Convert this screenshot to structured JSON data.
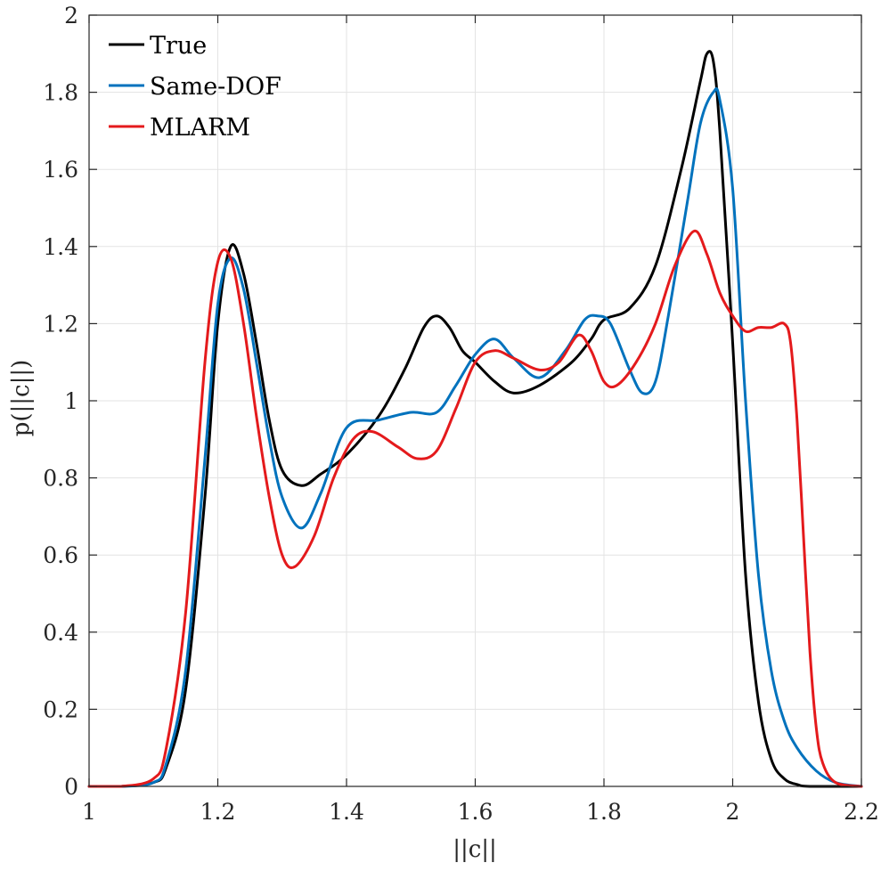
{
  "chart_data": {
    "type": "line",
    "title": "",
    "xlabel": "||c||",
    "ylabel": "p(||c||)",
    "xlim": [
      1,
      2.2
    ],
    "ylim": [
      0,
      2
    ],
    "xticks": [
      1,
      1.2,
      1.4,
      1.6,
      1.8,
      2,
      2.2
    ],
    "yticks": [
      0,
      0.2,
      0.4,
      0.6,
      0.8,
      1,
      1.2,
      1.4,
      1.6,
      1.8,
      2
    ],
    "xtick_labels": [
      "1",
      "1.2",
      "1.4",
      "1.6",
      "1.8",
      "2",
      "2.2"
    ],
    "ytick_labels": [
      "0",
      "0.2",
      "0.4",
      "0.6",
      "0.8",
      "1",
      "1.2",
      "1.4",
      "1.6",
      "1.8",
      "2"
    ],
    "grid": true,
    "legend_position": "top-left",
    "series": [
      {
        "name": "True",
        "color": "#000000",
        "x": [
          1.0,
          1.05,
          1.1,
          1.12,
          1.15,
          1.18,
          1.2,
          1.22,
          1.24,
          1.26,
          1.28,
          1.3,
          1.33,
          1.36,
          1.4,
          1.45,
          1.49,
          1.52,
          1.54,
          1.56,
          1.58,
          1.6,
          1.63,
          1.66,
          1.7,
          1.75,
          1.78,
          1.8,
          1.84,
          1.88,
          1.92,
          1.95,
          1.96,
          1.97,
          1.98,
          2.0,
          2.02,
          2.04,
          2.06,
          2.08,
          2.1,
          2.12,
          2.2
        ],
        "y": [
          0.0,
          0.0,
          0.01,
          0.05,
          0.25,
          0.75,
          1.2,
          1.4,
          1.33,
          1.15,
          0.95,
          0.82,
          0.78,
          0.81,
          0.86,
          0.96,
          1.08,
          1.19,
          1.22,
          1.19,
          1.13,
          1.1,
          1.05,
          1.02,
          1.04,
          1.1,
          1.16,
          1.21,
          1.24,
          1.35,
          1.6,
          1.83,
          1.9,
          1.88,
          1.7,
          1.15,
          0.55,
          0.22,
          0.07,
          0.02,
          0.005,
          0.0,
          0.0
        ]
      },
      {
        "name": "Same-DOF",
        "color": "#0072BD",
        "x": [
          1.0,
          1.05,
          1.1,
          1.12,
          1.15,
          1.18,
          1.2,
          1.22,
          1.24,
          1.26,
          1.28,
          1.3,
          1.33,
          1.36,
          1.4,
          1.45,
          1.5,
          1.54,
          1.57,
          1.6,
          1.63,
          1.66,
          1.7,
          1.74,
          1.77,
          1.79,
          1.81,
          1.84,
          1.86,
          1.88,
          1.9,
          1.93,
          1.95,
          1.97,
          1.98,
          2.0,
          2.02,
          2.04,
          2.06,
          2.08,
          2.1,
          2.13,
          2.16,
          2.2
        ],
        "y": [
          0.0,
          0.0,
          0.01,
          0.06,
          0.3,
          0.85,
          1.25,
          1.37,
          1.29,
          1.1,
          0.9,
          0.75,
          0.67,
          0.76,
          0.93,
          0.95,
          0.97,
          0.97,
          1.04,
          1.12,
          1.16,
          1.11,
          1.06,
          1.13,
          1.21,
          1.22,
          1.2,
          1.08,
          1.02,
          1.05,
          1.22,
          1.52,
          1.72,
          1.8,
          1.78,
          1.55,
          1.0,
          0.55,
          0.3,
          0.17,
          0.1,
          0.04,
          0.01,
          0.0
        ]
      },
      {
        "name": "MLARM",
        "color": "#E41A1C",
        "x": [
          1.0,
          1.05,
          1.1,
          1.12,
          1.15,
          1.18,
          1.2,
          1.22,
          1.24,
          1.26,
          1.28,
          1.3,
          1.32,
          1.35,
          1.38,
          1.41,
          1.44,
          1.48,
          1.51,
          1.54,
          1.57,
          1.6,
          1.63,
          1.66,
          1.7,
          1.73,
          1.76,
          1.78,
          1.8,
          1.82,
          1.85,
          1.88,
          1.91,
          1.94,
          1.96,
          1.98,
          2.0,
          2.02,
          2.04,
          2.06,
          2.08,
          2.09,
          2.1,
          2.11,
          2.12,
          2.13,
          2.14,
          2.16,
          2.2
        ],
        "y": [
          0.0,
          0.0,
          0.02,
          0.1,
          0.45,
          1.1,
          1.36,
          1.37,
          1.2,
          0.96,
          0.75,
          0.6,
          0.57,
          0.65,
          0.8,
          0.9,
          0.92,
          0.88,
          0.85,
          0.87,
          0.98,
          1.1,
          1.13,
          1.11,
          1.08,
          1.1,
          1.17,
          1.13,
          1.05,
          1.04,
          1.1,
          1.2,
          1.35,
          1.44,
          1.38,
          1.28,
          1.22,
          1.18,
          1.19,
          1.19,
          1.2,
          1.15,
          0.95,
          0.65,
          0.35,
          0.15,
          0.06,
          0.01,
          0.0
        ]
      }
    ]
  }
}
